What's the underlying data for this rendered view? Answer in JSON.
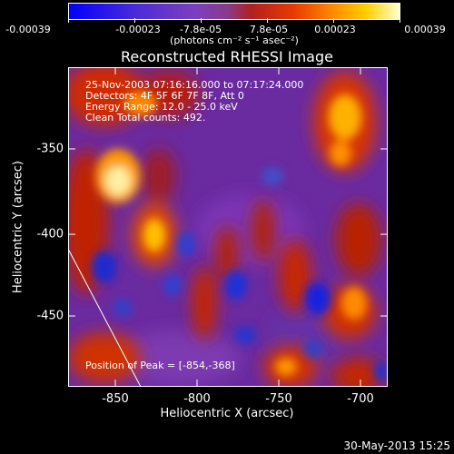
{
  "colorbar": {
    "ticks": [
      "-0.00039",
      "-0.00023",
      "-7.8e-05",
      "7.8e-05",
      "0.00023",
      "0.00039"
    ],
    "unit_label": "(photons cm⁻² s⁻¹ asec⁻²)"
  },
  "plot": {
    "title": "Reconstructed RHESSI Image",
    "xlabel": "Heliocentric X (arcsec)",
    "ylabel": "Heliocentric Y (arcsec)",
    "xticks": [
      "-850",
      "-800",
      "-750",
      "-700"
    ],
    "yticks": [
      "-350",
      "-400",
      "-450"
    ]
  },
  "annotations": {
    "time_range": "25-Nov-2003 07:16:16.000 to 07:17:24.000",
    "detectors": "Detectors: 4F 5F 6F 7F 8F, Att 0",
    "energy": "Energy Range: 12.0 - 25.0 keV",
    "clean": "Clean    Total counts: 492.",
    "peak": "Position of Peak = [-854,-368]"
  },
  "footer": {
    "date": "30-May-2013 15:25"
  },
  "colors": {
    "background": "#000000",
    "axes": "#ffffff"
  }
}
